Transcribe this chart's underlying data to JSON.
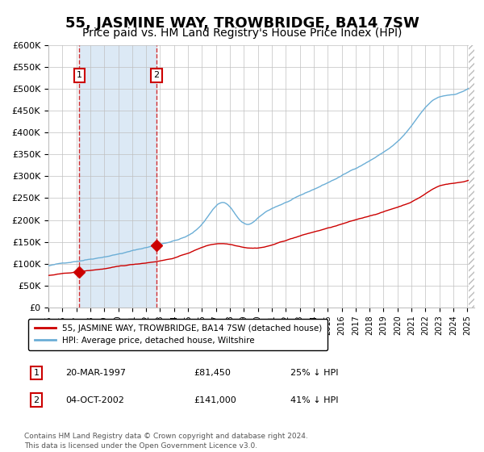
{
  "title": "55, JASMINE WAY, TROWBRIDGE, BA14 7SW",
  "subtitle": "Price paid vs. HM Land Registry's House Price Index (HPI)",
  "title_fontsize": 13,
  "subtitle_fontsize": 10,
  "ylim": [
    0,
    600000
  ],
  "yticks": [
    0,
    50000,
    100000,
    150000,
    200000,
    250000,
    300000,
    350000,
    400000,
    450000,
    500000,
    550000,
    600000
  ],
  "ytick_labels": [
    "£0",
    "£50K",
    "£100K",
    "£150K",
    "£200K",
    "£250K",
    "£300K",
    "£350K",
    "£400K",
    "£450K",
    "£500K",
    "£550K",
    "£600K"
  ],
  "x_start_year": 1995,
  "x_end_year": 2025,
  "hpi_color": "#6baed6",
  "price_color": "#cc0000",
  "background_color": "#ffffff",
  "shading_color": "#dce9f5",
  "grid_color": "#c0c0c0",
  "transaction1_date": 1997.22,
  "transaction1_price": 81450,
  "transaction2_date": 2002.75,
  "transaction2_price": 141000,
  "legend_label_red": "55, JASMINE WAY, TROWBRIDGE, BA14 7SW (detached house)",
  "legend_label_blue": "HPI: Average price, detached house, Wiltshire",
  "annot1_date": "20-MAR-1997",
  "annot1_price": "£81,450",
  "annot1_hpi": "25% ↓ HPI",
  "annot2_date": "04-OCT-2002",
  "annot2_price": "£141,000",
  "annot2_hpi": "41% ↓ HPI",
  "footer": "Contains HM Land Registry data © Crown copyright and database right 2024.\nThis data is licensed under the Open Government Licence v3.0."
}
